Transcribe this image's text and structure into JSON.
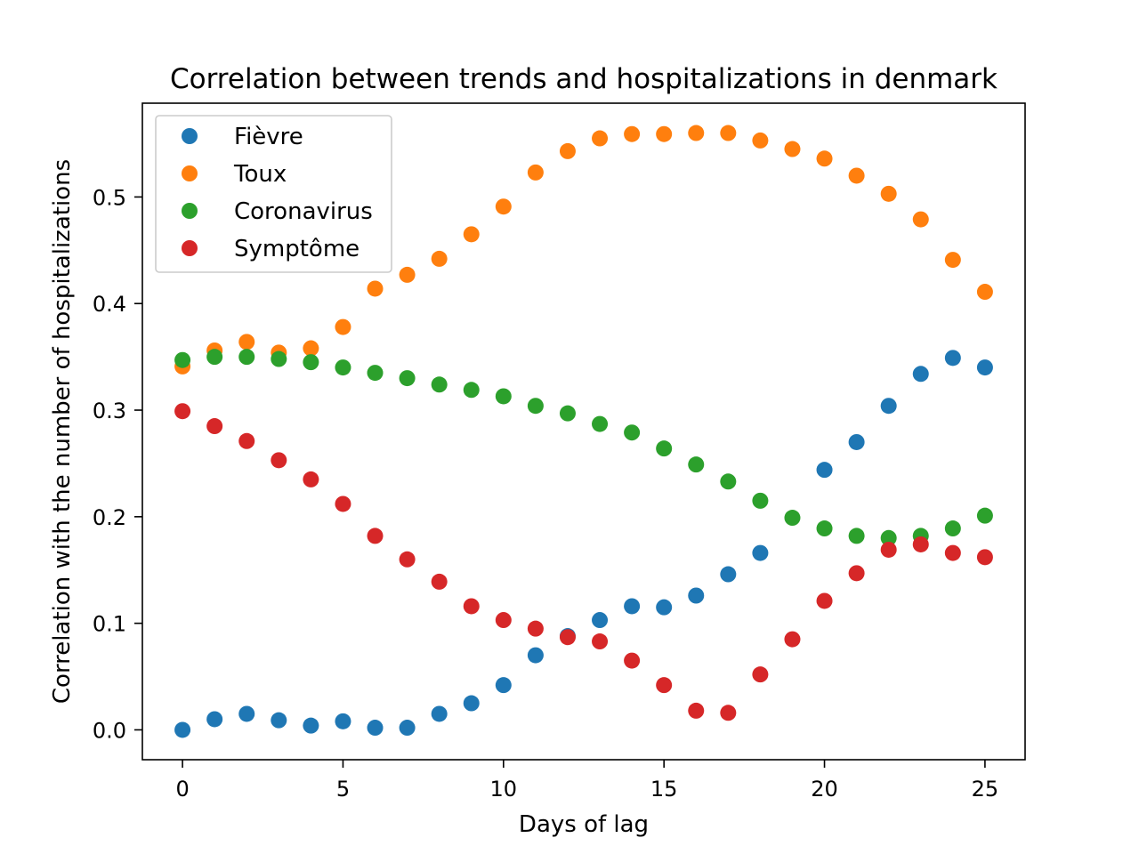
{
  "chart_data": {
    "type": "scatter",
    "title": "Correlation between trends and hospitalizations in denmark",
    "xlabel": "Days of lag",
    "ylabel": "Correlation with the number of hospitalizations",
    "xlim": [
      -1.25,
      26.25
    ],
    "ylim": [
      -0.028,
      0.588
    ],
    "xticks": [
      0,
      5,
      10,
      15,
      20,
      25
    ],
    "yticks": [
      0.0,
      0.1,
      0.2,
      0.3,
      0.4,
      0.5
    ],
    "xtick_labels": [
      "0",
      "5",
      "10",
      "15",
      "20",
      "25"
    ],
    "ytick_labels": [
      "0.0",
      "0.1",
      "0.2",
      "0.3",
      "0.4",
      "0.5"
    ],
    "grid": false,
    "legend_position": "top-left",
    "x": [
      0,
      1,
      2,
      3,
      4,
      5,
      6,
      7,
      8,
      9,
      10,
      11,
      12,
      13,
      14,
      15,
      16,
      17,
      18,
      19,
      20,
      21,
      22,
      23,
      24,
      25
    ],
    "series": [
      {
        "name": "Fièvre",
        "color": "#1f77b4",
        "values": [
          0.0,
          0.01,
          0.015,
          0.009,
          0.004,
          0.008,
          0.002,
          0.002,
          0.015,
          0.025,
          0.042,
          0.07,
          0.088,
          0.103,
          0.116,
          0.115,
          0.126,
          0.146,
          0.166,
          null,
          0.244,
          0.27,
          0.304,
          0.334,
          0.349,
          0.34
        ]
      },
      {
        "name": "Toux",
        "color": "#ff7f0e",
        "values": [
          0.341,
          0.356,
          0.364,
          0.354,
          0.358,
          0.378,
          0.414,
          0.427,
          0.442,
          0.465,
          0.491,
          0.523,
          0.543,
          0.555,
          0.559,
          0.559,
          0.56,
          0.56,
          0.553,
          0.545,
          0.536,
          0.52,
          0.503,
          0.479,
          0.441,
          0.411
        ]
      },
      {
        "name": "Coronavirus",
        "color": "#2ca02c",
        "values": [
          0.347,
          0.35,
          0.35,
          0.348,
          0.345,
          0.34,
          0.335,
          0.33,
          0.324,
          0.319,
          0.313,
          0.304,
          0.297,
          0.287,
          0.279,
          0.264,
          0.249,
          0.233,
          0.215,
          0.199,
          0.189,
          0.182,
          0.18,
          0.182,
          0.189,
          0.201
        ]
      },
      {
        "name": "Symptôme",
        "color": "#d62728",
        "values": [
          0.299,
          0.285,
          0.271,
          0.253,
          0.235,
          0.212,
          0.182,
          0.16,
          0.139,
          0.116,
          0.103,
          0.095,
          0.087,
          0.083,
          0.065,
          0.042,
          0.018,
          0.016,
          0.052,
          0.085,
          0.121,
          0.147,
          0.169,
          0.174,
          0.166,
          0.162
        ]
      }
    ]
  }
}
